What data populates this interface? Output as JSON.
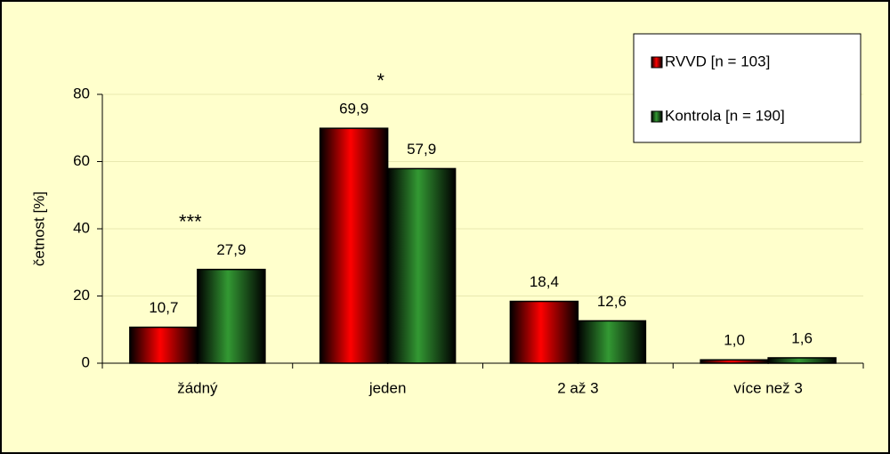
{
  "chart_data": {
    "type": "bar",
    "y_label": "četnost [%]",
    "categories": [
      "žádný",
      "jeden",
      "2 až 3",
      "více než 3"
    ],
    "series": [
      {
        "name": "RVVD [n = 103]",
        "color": "#ff0000",
        "values": [
          10.7,
          69.9,
          18.4,
          1.0
        ],
        "value_labels": [
          "10,7",
          "69,9",
          "18,4",
          "1,0"
        ]
      },
      {
        "name": "Kontrola [n = 190]",
        "color": "#339933",
        "values": [
          27.9,
          57.9,
          12.6,
          1.6
        ],
        "value_labels": [
          "27,9",
          "57,9",
          "12,6",
          "1,6"
        ]
      }
    ],
    "annotations": [
      "***",
      "*",
      null,
      null
    ],
    "ylim": [
      0,
      80
    ],
    "yticks": [
      0,
      20,
      40,
      60,
      80
    ],
    "grid": true,
    "legend": "upper right"
  }
}
